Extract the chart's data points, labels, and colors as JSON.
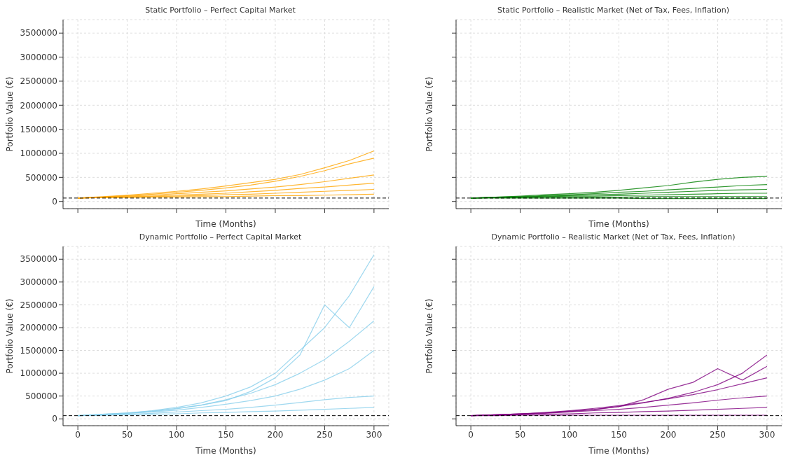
{
  "chart_data": [
    {
      "type": "line",
      "title": "Static Portfolio – Perfect Capital Market",
      "xlabel": "Time (Months)",
      "ylabel": "Portfolio Value (€)",
      "x": [
        0,
        25,
        50,
        75,
        100,
        125,
        150,
        175,
        200,
        225,
        250,
        275,
        300
      ],
      "xlim": [
        -15,
        315
      ],
      "xticks": [
        0,
        50,
        100,
        150,
        200,
        250,
        300
      ],
      "ylim": [
        -150000,
        3780000
      ],
      "yticks": [
        0,
        500000,
        1000000,
        1500000,
        2000000,
        2500000,
        3000000,
        3500000
      ],
      "grid": true,
      "marker": "none",
      "line_style": "solid",
      "tick_labels": "y",
      "ref_lines": [
        {
          "axis": "y",
          "value": 70000,
          "color": "#000000",
          "line_style": "dashed"
        }
      ],
      "series": [
        {
          "color": "#ffa500",
          "values": [
            70000,
            100000,
            130000,
            170000,
            210000,
            260000,
            320000,
            390000,
            460000,
            560000,
            700000,
            850000,
            1050000
          ]
        },
        {
          "color": "#ffa500",
          "values": [
            70000,
            90000,
            120000,
            150000,
            190000,
            230000,
            280000,
            340000,
            420000,
            520000,
            640000,
            780000,
            900000
          ]
        },
        {
          "color": "#ffa500",
          "values": [
            70000,
            90000,
            110000,
            130000,
            160000,
            190000,
            220000,
            260000,
            300000,
            350000,
            410000,
            480000,
            550000
          ]
        },
        {
          "color": "#ffa500",
          "values": [
            70000,
            90000,
            100000,
            110000,
            130000,
            150000,
            170000,
            200000,
            230000,
            270000,
            300000,
            340000,
            380000
          ]
        },
        {
          "color": "#ffa500",
          "values": [
            70000,
            80000,
            90000,
            100000,
            110000,
            120000,
            140000,
            150000,
            170000,
            190000,
            210000,
            230000,
            250000
          ]
        },
        {
          "color": "#ffa500",
          "values": [
            70000,
            80000,
            80000,
            90000,
            90000,
            100000,
            100000,
            110000,
            120000,
            120000,
            130000,
            140000,
            150000
          ]
        }
      ]
    },
    {
      "type": "line",
      "title": "Static Portfolio – Realistic Market (Net of Tax, Fees, Inflation)",
      "xlabel": "Time (Months)",
      "ylabel": "Portfolio Value (€)",
      "x": [
        0,
        25,
        50,
        75,
        100,
        125,
        150,
        175,
        200,
        225,
        250,
        275,
        300
      ],
      "xlim": [
        -15,
        315
      ],
      "xticks": [
        0,
        50,
        100,
        150,
        200,
        250,
        300
      ],
      "ylim": [
        -150000,
        3780000
      ],
      "yticks": [
        0,
        500000,
        1000000,
        1500000,
        2000000,
        2500000,
        3000000,
        3500000
      ],
      "grid": true,
      "marker": "none",
      "line_style": "solid",
      "tick_labels": false,
      "ref_lines": [
        {
          "axis": "y",
          "value": 70000,
          "color": "#000000",
          "line_style": "dashed"
        }
      ],
      "series": [
        {
          "color": "#008000",
          "values": [
            70000,
            90000,
            110000,
            140000,
            160000,
            190000,
            230000,
            280000,
            330000,
            400000,
            460000,
            500000,
            520000
          ]
        },
        {
          "color": "#008000",
          "values": [
            70000,
            90000,
            100000,
            120000,
            140000,
            160000,
            190000,
            210000,
            240000,
            270000,
            300000,
            330000,
            350000
          ]
        },
        {
          "color": "#008000",
          "values": [
            70000,
            80000,
            90000,
            110000,
            120000,
            140000,
            150000,
            170000,
            190000,
            210000,
            230000,
            240000,
            250000
          ]
        },
        {
          "color": "#008000",
          "values": [
            70000,
            80000,
            90000,
            100000,
            110000,
            110000,
            120000,
            130000,
            140000,
            150000,
            160000,
            170000,
            170000
          ]
        },
        {
          "color": "#008000",
          "values": [
            70000,
            80000,
            80000,
            90000,
            90000,
            90000,
            90000,
            100000,
            100000,
            100000,
            100000,
            100000,
            100000
          ]
        },
        {
          "color": "#008000",
          "values": [
            70000,
            70000,
            70000,
            70000,
            70000,
            70000,
            70000,
            60000,
            60000,
            60000,
            60000,
            60000,
            60000
          ]
        }
      ]
    },
    {
      "type": "line",
      "title": "Dynamic Portfolio – Perfect Capital Market",
      "xlabel": "Time (Months)",
      "ylabel": "Portfolio Value (€)",
      "x": [
        0,
        25,
        50,
        75,
        100,
        125,
        150,
        175,
        200,
        225,
        250,
        275,
        300
      ],
      "xlim": [
        -15,
        315
      ],
      "xticks": [
        0,
        50,
        100,
        150,
        200,
        250,
        300
      ],
      "ylim": [
        -150000,
        3780000
      ],
      "yticks": [
        0,
        500000,
        1000000,
        1500000,
        2000000,
        2500000,
        3000000,
        3500000
      ],
      "grid": true,
      "marker": "none",
      "line_style": "solid",
      "ref_lines": [
        {
          "axis": "y",
          "value": 70000,
          "color": "#000000",
          "line_style": "dashed"
        }
      ],
      "series": [
        {
          "color": "#87ceeb",
          "values": [
            70000,
            100000,
            130000,
            180000,
            250000,
            350000,
            500000,
            700000,
            1000000,
            1500000,
            2000000,
            2700000,
            3600000
          ]
        },
        {
          "color": "#87ceeb",
          "values": [
            70000,
            100000,
            130000,
            170000,
            230000,
            300000,
            400000,
            600000,
            900000,
            1400000,
            2500000,
            2000000,
            2900000
          ]
        },
        {
          "color": "#87ceeb",
          "values": [
            70000,
            90000,
            120000,
            160000,
            220000,
            300000,
            420000,
            560000,
            750000,
            1000000,
            1300000,
            1700000,
            2150000
          ]
        },
        {
          "color": "#87ceeb",
          "values": [
            70000,
            90000,
            120000,
            150000,
            190000,
            250000,
            320000,
            400000,
            500000,
            650000,
            850000,
            1100000,
            1500000
          ]
        },
        {
          "color": "#87ceeb",
          "values": [
            70000,
            80000,
            100000,
            120000,
            150000,
            180000,
            210000,
            250000,
            300000,
            360000,
            420000,
            470000,
            500000
          ]
        },
        {
          "color": "#87ceeb",
          "values": [
            70000,
            80000,
            90000,
            100000,
            110000,
            130000,
            140000,
            160000,
            170000,
            190000,
            210000,
            230000,
            250000
          ]
        }
      ]
    },
    {
      "type": "line",
      "title": "Dynamic Portfolio – Realistic Market (Net of Tax, Fees, Inflation)",
      "xlabel": "Time (Months)",
      "ylabel": "Portfolio Value (€)",
      "x": [
        0,
        25,
        50,
        75,
        100,
        125,
        150,
        175,
        200,
        225,
        250,
        275,
        300
      ],
      "xlim": [
        -15,
        315
      ],
      "xticks": [
        0,
        50,
        100,
        150,
        200,
        250,
        300
      ],
      "ylim": [
        -150000,
        3780000
      ],
      "yticks": [
        0,
        500000,
        1000000,
        1500000,
        2000000,
        2500000,
        3000000,
        3500000
      ],
      "grid": true,
      "marker": "none",
      "line_style": "solid",
      "tick_labels": "x",
      "ref_lines": [
        {
          "axis": "y",
          "value": 70000,
          "color": "#000000",
          "line_style": "dashed"
        }
      ],
      "series": [
        {
          "color": "#800080",
          "values": [
            70000,
            90000,
            110000,
            130000,
            170000,
            210000,
            270000,
            350000,
            450000,
            580000,
            750000,
            1000000,
            1400000
          ]
        },
        {
          "color": "#800080",
          "values": [
            70000,
            90000,
            110000,
            130000,
            160000,
            200000,
            270000,
            420000,
            650000,
            800000,
            1100000,
            850000,
            1150000
          ]
        },
        {
          "color": "#800080",
          "values": [
            70000,
            90000,
            110000,
            140000,
            180000,
            230000,
            290000,
            360000,
            440000,
            530000,
            640000,
            770000,
            900000
          ]
        },
        {
          "color": "#800080",
          "values": [
            70000,
            80000,
            100000,
            120000,
            150000,
            180000,
            210000,
            250000,
            300000,
            350000,
            410000,
            460000,
            500000
          ]
        },
        {
          "color": "#800080",
          "values": [
            70000,
            80000,
            90000,
            100000,
            110000,
            130000,
            140000,
            160000,
            170000,
            190000,
            210000,
            230000,
            250000
          ]
        },
        {
          "color": "#800080",
          "values": [
            70000,
            70000,
            80000,
            80000,
            80000,
            80000,
            80000,
            80000,
            80000,
            80000,
            80000,
            80000,
            80000
          ]
        }
      ]
    }
  ]
}
